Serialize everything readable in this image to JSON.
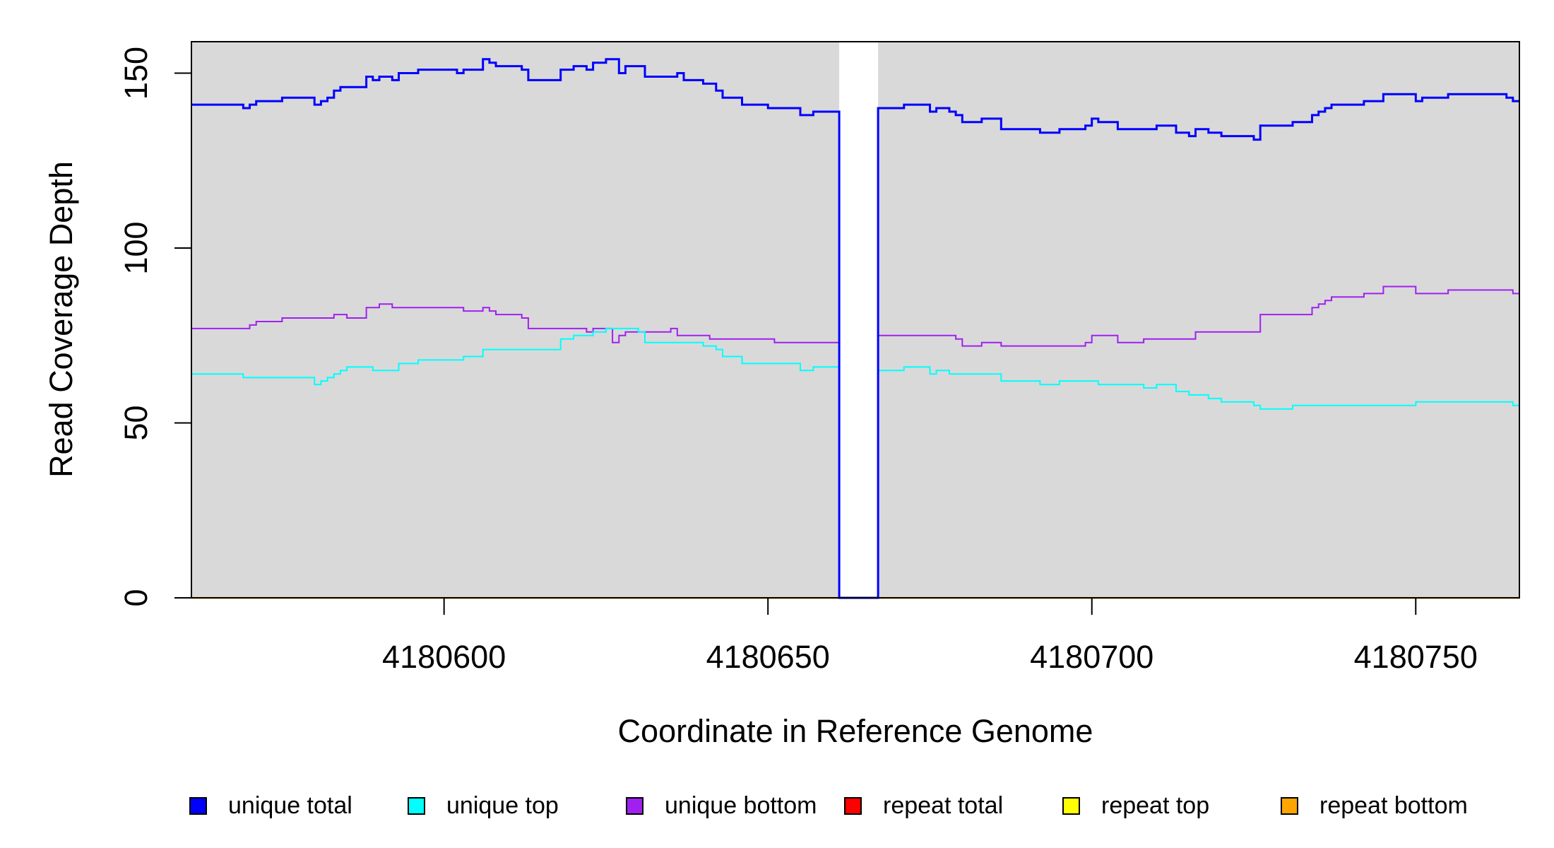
{
  "chart_data": {
    "type": "line",
    "xlabel": "Coordinate in Reference Genome",
    "ylabel": "Read Coverage Depth",
    "xlim": [
      4180561,
      4180766
    ],
    "ylim": [
      0,
      159
    ],
    "x_ticks": [
      4180600,
      4180650,
      4180700,
      4180750
    ],
    "x_tick_labels": [
      "4180600",
      "4180650",
      "4180700",
      "4180750"
    ],
    "y_ticks": [
      0,
      50,
      100,
      150
    ],
    "y_tick_labels": [
      "0",
      "50",
      "100",
      "150"
    ],
    "plot_background": "#d9d9d9",
    "gap": [
      4180661,
      4180667
    ],
    "legend_position": "bottom",
    "series": [
      {
        "name": "unique total",
        "color": "#0000ff",
        "step": true,
        "points": [
          [
            4180561,
            141
          ],
          [
            4180569,
            140
          ],
          [
            4180570,
            141
          ],
          [
            4180571,
            142
          ],
          [
            4180575,
            143
          ],
          [
            4180580,
            141
          ],
          [
            4180581,
            142
          ],
          [
            4180582,
            143
          ],
          [
            4180583,
            145
          ],
          [
            4180584,
            146
          ],
          [
            4180588,
            149
          ],
          [
            4180589,
            148
          ],
          [
            4180590,
            149
          ],
          [
            4180592,
            148
          ],
          [
            4180593,
            150
          ],
          [
            4180596,
            151
          ],
          [
            4180602,
            150
          ],
          [
            4180603,
            151
          ],
          [
            4180606,
            154
          ],
          [
            4180607,
            153
          ],
          [
            4180608,
            152
          ],
          [
            4180612,
            151
          ],
          [
            4180613,
            148
          ],
          [
            4180618,
            151
          ],
          [
            4180620,
            152
          ],
          [
            4180622,
            151
          ],
          [
            4180623,
            153
          ],
          [
            4180625,
            154
          ],
          [
            4180627,
            150
          ],
          [
            4180628,
            152
          ],
          [
            4180631,
            149
          ],
          [
            4180636,
            150
          ],
          [
            4180637,
            148
          ],
          [
            4180640,
            147
          ],
          [
            4180642,
            145
          ],
          [
            4180643,
            143
          ],
          [
            4180646,
            141
          ],
          [
            4180650,
            140
          ],
          [
            4180655,
            138
          ],
          [
            4180657,
            139
          ],
          [
            4180661,
            0
          ],
          [
            4180667,
            140
          ],
          [
            4180671,
            141
          ],
          [
            4180675,
            139
          ],
          [
            4180676,
            140
          ],
          [
            4180678,
            139
          ],
          [
            4180679,
            138
          ],
          [
            4180680,
            136
          ],
          [
            4180683,
            137
          ],
          [
            4180686,
            134
          ],
          [
            4180692,
            133
          ],
          [
            4180695,
            134
          ],
          [
            4180699,
            135
          ],
          [
            4180700,
            137
          ],
          [
            4180701,
            136
          ],
          [
            4180704,
            134
          ],
          [
            4180710,
            135
          ],
          [
            4180713,
            133
          ],
          [
            4180715,
            132
          ],
          [
            4180716,
            134
          ],
          [
            4180718,
            133
          ],
          [
            4180720,
            132
          ],
          [
            4180725,
            131
          ],
          [
            4180726,
            135
          ],
          [
            4180731,
            136
          ],
          [
            4180734,
            138
          ],
          [
            4180735,
            139
          ],
          [
            4180736,
            140
          ],
          [
            4180737,
            141
          ],
          [
            4180742,
            142
          ],
          [
            4180745,
            144
          ],
          [
            4180750,
            142
          ],
          [
            4180751,
            143
          ],
          [
            4180755,
            144
          ],
          [
            4180764,
            143
          ],
          [
            4180765,
            142
          ],
          [
            4180766,
            142
          ]
        ]
      },
      {
        "name": "unique top",
        "color": "#00ffff",
        "step": true,
        "points": [
          [
            4180561,
            64
          ],
          [
            4180569,
            63
          ],
          [
            4180580,
            61
          ],
          [
            4180581,
            62
          ],
          [
            4180582,
            63
          ],
          [
            4180583,
            64
          ],
          [
            4180584,
            65
          ],
          [
            4180585,
            66
          ],
          [
            4180589,
            65
          ],
          [
            4180593,
            67
          ],
          [
            4180596,
            68
          ],
          [
            4180603,
            69
          ],
          [
            4180606,
            71
          ],
          [
            4180618,
            74
          ],
          [
            4180620,
            75
          ],
          [
            4180623,
            76
          ],
          [
            4180625,
            77
          ],
          [
            4180630,
            76
          ],
          [
            4180631,
            73
          ],
          [
            4180640,
            72
          ],
          [
            4180642,
            71
          ],
          [
            4180643,
            69
          ],
          [
            4180646,
            67
          ],
          [
            4180655,
            65
          ],
          [
            4180657,
            66
          ],
          [
            4180661,
            0
          ],
          [
            4180667,
            65
          ],
          [
            4180671,
            66
          ],
          [
            4180675,
            64
          ],
          [
            4180676,
            65
          ],
          [
            4180678,
            64
          ],
          [
            4180686,
            62
          ],
          [
            4180692,
            61
          ],
          [
            4180695,
            62
          ],
          [
            4180701,
            61
          ],
          [
            4180708,
            60
          ],
          [
            4180710,
            61
          ],
          [
            4180713,
            59
          ],
          [
            4180715,
            58
          ],
          [
            4180718,
            57
          ],
          [
            4180720,
            56
          ],
          [
            4180725,
            55
          ],
          [
            4180726,
            54
          ],
          [
            4180731,
            55
          ],
          [
            4180750,
            56
          ],
          [
            4180765,
            55
          ],
          [
            4180766,
            55
          ]
        ]
      },
      {
        "name": "unique bottom",
        "color": "#a020f0",
        "step": true,
        "points": [
          [
            4180561,
            77
          ],
          [
            4180570,
            78
          ],
          [
            4180571,
            79
          ],
          [
            4180575,
            80
          ],
          [
            4180583,
            81
          ],
          [
            4180585,
            80
          ],
          [
            4180588,
            83
          ],
          [
            4180590,
            84
          ],
          [
            4180592,
            83
          ],
          [
            4180603,
            82
          ],
          [
            4180606,
            83
          ],
          [
            4180607,
            82
          ],
          [
            4180608,
            81
          ],
          [
            4180612,
            80
          ],
          [
            4180613,
            77
          ],
          [
            4180622,
            76
          ],
          [
            4180623,
            77
          ],
          [
            4180626,
            73
          ],
          [
            4180627,
            75
          ],
          [
            4180628,
            76
          ],
          [
            4180635,
            77
          ],
          [
            4180636,
            75
          ],
          [
            4180641,
            74
          ],
          [
            4180651,
            73
          ],
          [
            4180661,
            0
          ],
          [
            4180667,
            75
          ],
          [
            4180679,
            74
          ],
          [
            4180680,
            72
          ],
          [
            4180683,
            73
          ],
          [
            4180686,
            72
          ],
          [
            4180699,
            73
          ],
          [
            4180700,
            75
          ],
          [
            4180704,
            73
          ],
          [
            4180708,
            74
          ],
          [
            4180716,
            76
          ],
          [
            4180726,
            81
          ],
          [
            4180734,
            83
          ],
          [
            4180735,
            84
          ],
          [
            4180736,
            85
          ],
          [
            4180737,
            86
          ],
          [
            4180742,
            87
          ],
          [
            4180745,
            89
          ],
          [
            4180750,
            87
          ],
          [
            4180755,
            88
          ],
          [
            4180765,
            87
          ],
          [
            4180766,
            87
          ]
        ]
      },
      {
        "name": "repeat total",
        "color": "#ff0000",
        "step": true,
        "points": [
          [
            4180561,
            0
          ],
          [
            4180766,
            0
          ]
        ]
      },
      {
        "name": "repeat top",
        "color": "#ffff00",
        "step": true,
        "points": [
          [
            4180561,
            0
          ],
          [
            4180766,
            0
          ]
        ]
      },
      {
        "name": "repeat bottom",
        "color": "#ffa500",
        "step": true,
        "points": [
          [
            4180561,
            0
          ],
          [
            4180766,
            0
          ]
        ]
      }
    ]
  }
}
